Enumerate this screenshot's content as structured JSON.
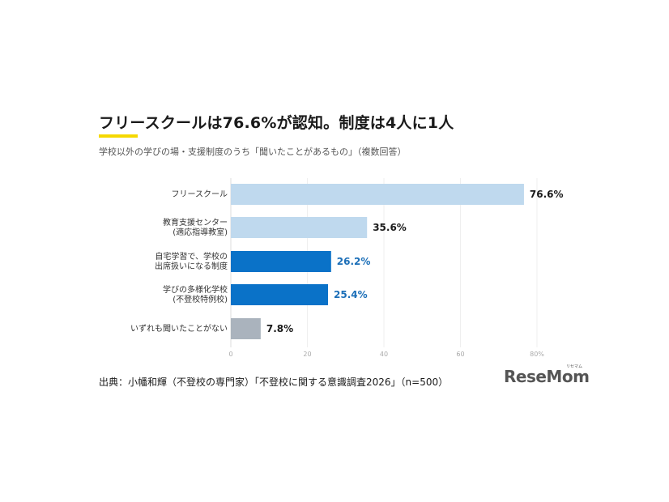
{
  "title": "フリースクールは76.6%が認知。制度は4人に1人",
  "subtitle": "学校以外の学びの場・支援制度のうち「聞いたことがあるもの」（複数回答）",
  "source": "出典：小幡和輝（不登校の専門家）「不登校に関する意識調査2026」（n=500）",
  "logo": {
    "text": "ReseMom",
    "kana": "リセマム"
  },
  "colors": {
    "light_blue": "#bfd9ee",
    "dark_blue": "#0a72c8",
    "gray": "#aab3bd",
    "value_dark": "#1a1a1a",
    "value_blue": "#1c6fb8",
    "accent_yellow": "#f5d800"
  },
  "chart_data": {
    "type": "bar",
    "orientation": "horizontal",
    "categories": [
      [
        "フリースクール"
      ],
      [
        "教育支援センター",
        "(適応指導教室)"
      ],
      [
        "自宅学習で、学校の",
        "出席扱いになる制度"
      ],
      [
        "学びの多様化学校",
        "(不登校特例校)"
      ],
      [
        "いずれも聞いたことがない"
      ]
    ],
    "values": [
      76.6,
      35.6,
      26.2,
      25.4,
      7.8
    ],
    "value_labels": [
      "76.6%",
      "35.6%",
      "26.2%",
      "25.4%",
      "7.8%"
    ],
    "bar_colors": [
      "light_blue",
      "light_blue",
      "dark_blue",
      "dark_blue",
      "gray"
    ],
    "value_label_colors": [
      "value_dark",
      "value_dark",
      "value_blue",
      "value_blue",
      "value_dark"
    ],
    "xlim": [
      0,
      80
    ],
    "xticks": [
      0,
      20,
      40,
      60,
      80
    ],
    "xtick_labels": [
      "0",
      "20",
      "40",
      "60",
      "80%"
    ],
    "grid": true
  }
}
